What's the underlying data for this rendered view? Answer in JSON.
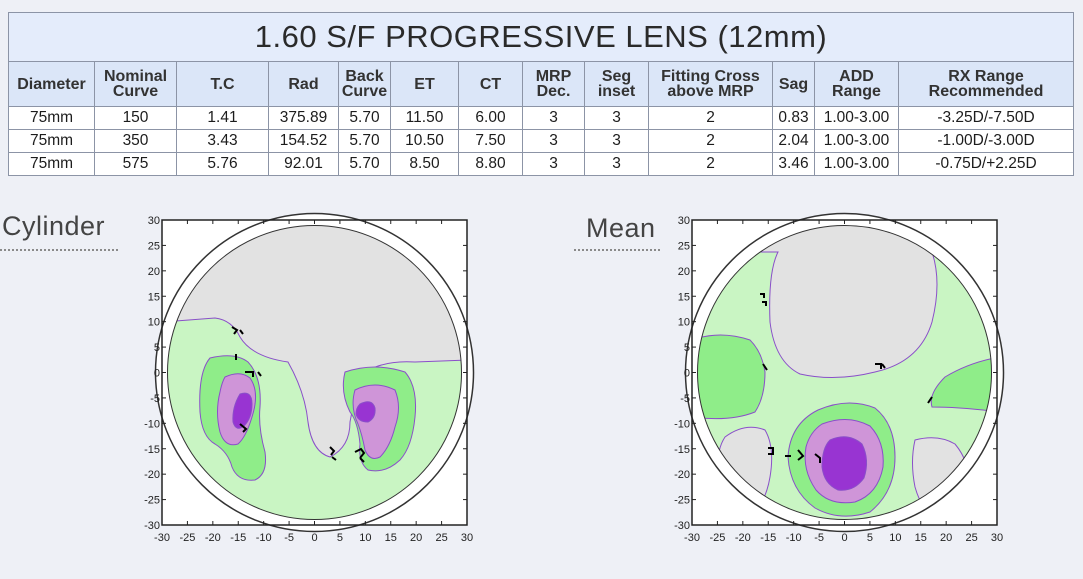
{
  "table": {
    "title": "1.60 S/F PROGRESSIVE LENS (12mm)",
    "headers": [
      [
        "Diameter"
      ],
      [
        "Nominal",
        "Curve"
      ],
      [
        "T.C"
      ],
      [
        "Rad"
      ],
      [
        "Back",
        "Curve"
      ],
      [
        "ET"
      ],
      [
        "CT"
      ],
      [
        "MRP",
        "Dec."
      ],
      [
        "Seg",
        "inset"
      ],
      [
        "Fitting Cross",
        "above MRP"
      ],
      [
        "Sag"
      ],
      [
        "ADD",
        "Range"
      ],
      [
        "RX Range",
        "Recommended"
      ]
    ],
    "rows": [
      [
        "75mm",
        "150",
        "1.41",
        "375.89",
        "5.70",
        "11.50",
        "6.00",
        "3",
        "3",
        "2",
        "0.83",
        "1.00-3.00",
        "-3.25D/-7.50D"
      ],
      [
        "75mm",
        "350",
        "3.43",
        "154.52",
        "5.70",
        "10.50",
        "7.50",
        "3",
        "3",
        "2",
        "2.04",
        "1.00-3.00",
        "-1.00D/-3.00D"
      ],
      [
        "75mm",
        "575",
        "5.76",
        "92.01",
        "5.70",
        "8.50",
        "8.80",
        "3",
        "3",
        "2",
        "3.46",
        "1.00-3.00",
        "-0.75D/+2.25D"
      ]
    ]
  },
  "plots": {
    "cylinder": {
      "title": "Cylinder"
    },
    "mean": {
      "title": "Mean"
    },
    "axis_range": [
      -30,
      30
    ],
    "x_ticks": [
      "-30",
      "-25",
      "-20",
      "-15",
      "-10",
      "-5",
      "0",
      "5",
      "10",
      "15",
      "20",
      "25",
      "30"
    ],
    "y_ticks": [
      "30",
      "25",
      "20",
      "15",
      "10",
      "5",
      "0",
      "-5",
      "-10",
      "-15",
      "-20",
      "-25",
      "-30"
    ],
    "colors": {
      "gray": "#e2e2e2",
      "pale_green": "#c9f5c3",
      "green": "#8fed89",
      "light_purple": "#cf95d8",
      "purple": "#9834d2",
      "contour_line": "#8a4fc9"
    }
  }
}
